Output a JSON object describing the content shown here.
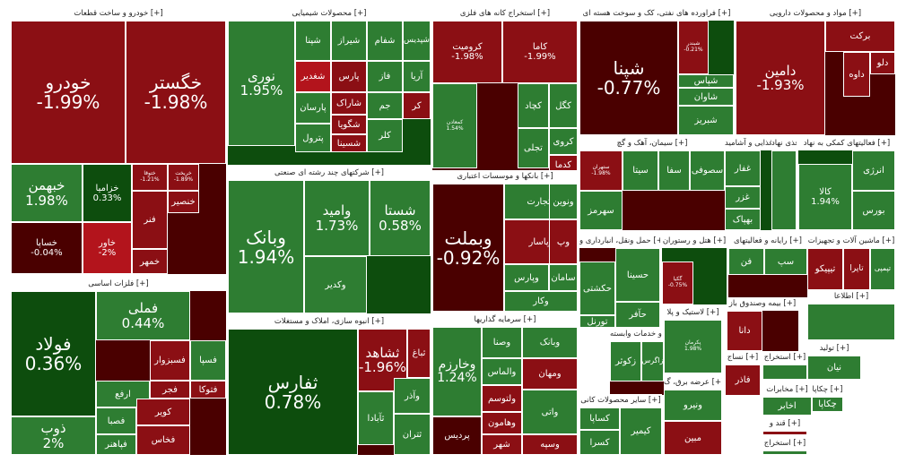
{
  "colors": {
    "gain_strong": "#1b8a1b",
    "gain": "#2e7d32",
    "gain_dark": "#0d4d0d",
    "loss": "#8b0f14",
    "loss_dark": "#4a0000",
    "loss_bright": "#b3141c"
  },
  "sectors": [
    {
      "id": "auto",
      "title": "خودرو و ساخت قطعات [+]",
      "tiles": [
        {
          "name": "خودرو",
          "pct": "-1.99%",
          "c": "loss",
          "big": 1
        },
        {
          "name": "خگستر",
          "pct": "-1.98%",
          "c": "loss",
          "big": 1
        },
        {
          "name": "خبهمن",
          "pct": "1.98%",
          "c": "gain",
          "big": 2
        },
        {
          "name": "خزامیا",
          "pct": "0.33%",
          "c": "gain_dark",
          "big": 3
        },
        {
          "name": "خساپا",
          "pct": "-0.04%",
          "c": "loss_dark",
          "big": 3
        },
        {
          "name": "خاور",
          "pct": "-2%",
          "c": "loss_bright",
          "big": 3
        },
        {
          "name": "ختوقا",
          "pct": "-1.21%",
          "c": "loss",
          "big": 4
        },
        {
          "name": "خریخت",
          "pct": "-1.89%",
          "c": "loss",
          "big": 4
        },
        {
          "name": "خنصیر",
          "pct": "",
          "c": "loss",
          "big": 3
        },
        {
          "name": "فنر",
          "pct": "",
          "c": "loss",
          "big": 3
        },
        {
          "name": "خمهر",
          "pct": "",
          "c": "loss",
          "big": 3
        }
      ]
    },
    {
      "id": "chem",
      "title": "محصولات شیمیایی [+]",
      "tiles": [
        {
          "name": "نوری",
          "pct": "1.95%",
          "c": "gain",
          "big": 2
        },
        {
          "name": "شغدیر",
          "pct": "",
          "c": "loss_bright",
          "big": 3
        },
        {
          "name": "شپنا",
          "pct": "",
          "c": "gain",
          "big": 3
        },
        {
          "name": "شیراز",
          "pct": "",
          "c": "gain",
          "big": 3
        },
        {
          "name": "شفام",
          "pct": "",
          "c": "gain",
          "big": 3
        },
        {
          "name": "شپدیس",
          "pct": "",
          "c": "gain",
          "big": 3
        },
        {
          "name": "پارس",
          "pct": "",
          "c": "loss",
          "big": 3
        },
        {
          "name": "شاراک",
          "pct": "",
          "c": "loss",
          "big": 3
        },
        {
          "name": "پارسان",
          "pct": "",
          "c": "gain",
          "big": 3
        },
        {
          "name": "شگویا",
          "pct": "",
          "c": "loss",
          "big": 3
        },
        {
          "name": "شسینا",
          "pct": "",
          "c": "loss",
          "big": 3
        },
        {
          "name": "پترول",
          "pct": "",
          "c": "gain",
          "big": 3
        },
        {
          "name": "فاز",
          "pct": "",
          "c": "gain",
          "big": 3
        },
        {
          "name": "آریا",
          "pct": "",
          "c": "gain",
          "big": 3
        },
        {
          "name": "جم",
          "pct": "",
          "c": "gain",
          "big": 3
        },
        {
          "name": "کلر",
          "pct": "",
          "c": "gain",
          "big": 3
        },
        {
          "name": "کر",
          "pct": "",
          "c": "loss",
          "big": 3
        }
      ]
    },
    {
      "id": "metal",
      "title": "استخراج کانه های فلزی [+]",
      "tiles": [
        {
          "name": "کرومیت",
          "pct": "-1.98%",
          "c": "loss",
          "big": 3
        },
        {
          "name": "کاما",
          "pct": "-1.99%",
          "c": "loss",
          "big": 3
        },
        {
          "name": "کگل",
          "pct": "",
          "c": "gain",
          "big": 3
        },
        {
          "name": "کچاد",
          "pct": "",
          "c": "gain",
          "big": 3
        },
        {
          "name": "کمعادن",
          "pct": "1.54%",
          "c": "gain",
          "big": 4
        },
        {
          "name": "کروی",
          "pct": "",
          "c": "gain",
          "big": 3
        },
        {
          "name": "کدما",
          "pct": "",
          "c": "loss",
          "big": 3
        },
        {
          "name": "تجلی",
          "pct": "",
          "c": "gain",
          "big": 3
        }
      ]
    },
    {
      "id": "refine",
      "title": "فراورده های نفتی، کک و سوخت هسته ای [+]",
      "tiles": [
        {
          "name": "شپنا",
          "pct": "-0.77%",
          "c": "loss_dark",
          "big": 1
        },
        {
          "name": "شبندر",
          "pct": "-0.21%",
          "c": "loss",
          "big": 4
        },
        {
          "name": "شبریز",
          "pct": "",
          "c": "gain",
          "big": 3
        },
        {
          "name": "شاوان",
          "pct": "",
          "c": "gain",
          "big": 3
        },
        {
          "name": "شپاس",
          "pct": "",
          "c": "gain",
          "big": 3
        }
      ]
    },
    {
      "id": "pharma",
      "title": "مواد و محصولات دارویی [+]",
      "tiles": [
        {
          "name": "دامین",
          "pct": "-1.93%",
          "c": "loss",
          "big": 2
        },
        {
          "name": "برکت",
          "pct": "",
          "c": "loss",
          "big": 3
        },
        {
          "name": "دلو",
          "pct": "",
          "c": "loss",
          "big": 3
        },
        {
          "name": "داوه",
          "pct": "",
          "c": "loss",
          "big": 3
        }
      ]
    },
    {
      "id": "diversified",
      "title": "شرکتهای چند رشته ای صنعتی [+]",
      "tiles": [
        {
          "name": "وبانک",
          "pct": "1.94%",
          "c": "gain",
          "big": 1
        },
        {
          "name": "وامید",
          "pct": "1.73%",
          "c": "gain",
          "big": 2
        },
        {
          "name": "شستا",
          "pct": "0.58%",
          "c": "gain",
          "big": 2
        },
        {
          "name": "وکدیر",
          "pct": "",
          "c": "gain",
          "big": 3
        }
      ]
    },
    {
      "id": "realestate",
      "title": "انبوه سازی، املاک و مستغلات [+]",
      "tiles": [
        {
          "name": "ثفارس",
          "pct": "0.78%",
          "c": "gain_dark",
          "big": 1
        },
        {
          "name": "ثشاهد",
          "pct": "-1.96%",
          "c": "loss",
          "big": 2
        },
        {
          "name": "ثباغ",
          "pct": "",
          "c": "loss",
          "big": 3
        },
        {
          "name": "ثآبادا",
          "pct": "",
          "c": "gain",
          "big": 3
        },
        {
          "name": "وآذر",
          "pct": "",
          "c": "gain",
          "big": 3
        },
        {
          "name": "ثتران",
          "pct": "",
          "c": "gain",
          "big": 3
        }
      ]
    },
    {
      "id": "banks",
      "title": "بانکها و موسسات اعتباری [+]",
      "tiles": [
        {
          "name": "وبملت",
          "pct": "-0.92%",
          "c": "loss_dark",
          "big": 1
        },
        {
          "name": "وپاسار",
          "pct": "",
          "c": "loss",
          "big": 3
        },
        {
          "name": "وپارس",
          "pct": "",
          "c": "gain",
          "big": 3
        },
        {
          "name": "سامان",
          "pct": "",
          "c": "gain",
          "big": 3
        },
        {
          "name": "وکار",
          "pct": "",
          "c": "gain",
          "big": 3
        },
        {
          "name": "وپ",
          "pct": "",
          "c": "loss",
          "big": 3
        },
        {
          "name": "وتجارت",
          "pct": "",
          "c": "gain",
          "big": 3
        },
        {
          "name": "ونوین",
          "pct": "",
          "c": "gain",
          "big": 3
        }
      ]
    },
    {
      "id": "basemetal",
      "title": "فلزات اساسی [+]",
      "tiles": [
        {
          "name": "فولاد",
          "pct": "0.36%",
          "c": "gain_dark",
          "big": 1
        },
        {
          "name": "فملی",
          "pct": "0.44%",
          "c": "gain",
          "big": 2
        },
        {
          "name": "ذوب",
          "pct": "2%",
          "c": "gain",
          "big": 2
        },
        {
          "name": "فسپا",
          "pct": "",
          "c": "gain",
          "big": 3
        },
        {
          "name": "فسبزوار",
          "pct": "",
          "c": "loss",
          "big": 3
        },
        {
          "name": "فتوکا",
          "pct": "",
          "c": "loss",
          "big": 3
        },
        {
          "name": "ارفع",
          "pct": "",
          "c": "gain",
          "big": 3
        },
        {
          "name": "فصبا",
          "pct": "",
          "c": "gain",
          "big": 3
        },
        {
          "name": "فجر",
          "pct": "",
          "c": "loss",
          "big": 3
        },
        {
          "name": "کویر",
          "pct": "",
          "c": "loss",
          "big": 3
        },
        {
          "name": "فپاهنر",
          "pct": "",
          "c": "gain",
          "big": 3
        },
        {
          "name": "فخاس",
          "pct": "",
          "c": "loss",
          "big": 3
        }
      ]
    },
    {
      "id": "invest",
      "title": "سرمایه گذاریها [+]",
      "tiles": [
        {
          "name": "وخارزم",
          "pct": "1.24%",
          "c": "gain",
          "big": 2
        },
        {
          "name": "وصنا",
          "pct": "",
          "c": "gain",
          "big": 3
        },
        {
          "name": "وبانک",
          "pct": "",
          "c": "gain",
          "big": 3
        },
        {
          "name": "والماس",
          "pct": "",
          "c": "gain",
          "big": 3
        },
        {
          "name": "ومهان",
          "pct": "",
          "c": "loss",
          "big": 3
        },
        {
          "name": "ولتوسم",
          "pct": "",
          "c": "loss",
          "big": 3
        },
        {
          "name": "وهامون",
          "pct": "",
          "c": "loss",
          "big": 3
        },
        {
          "name": "واتی",
          "pct": "",
          "c": "gain",
          "big": 3
        },
        {
          "name": "شهر",
          "pct": "",
          "c": "loss",
          "big": 3
        },
        {
          "name": "وسپه",
          "pct": "",
          "c": "loss",
          "big": 3
        },
        {
          "name": "پردیس",
          "pct": "",
          "c": "loss_dark",
          "big": 3
        }
      ]
    },
    {
      "id": "cement",
      "title": "سیمان، آهک و گچ [+]",
      "tiles": [
        {
          "name": "سهرمز",
          "pct": "",
          "c": "gain",
          "big": 3
        },
        {
          "name": "ستهران",
          "pct": "-1.98%",
          "c": "loss",
          "big": 4
        },
        {
          "name": "سیتا",
          "pct": "",
          "c": "gain",
          "big": 3
        },
        {
          "name": "سفا",
          "pct": "",
          "c": "gain",
          "big": 3
        },
        {
          "name": "سصوفی",
          "pct": "",
          "c": "gain",
          "big": 3
        }
      ]
    },
    {
      "id": "food",
      "title": "محصولات غذایی و آشامید [+]",
      "tiles": [
        {
          "name": "غفار",
          "pct": "",
          "c": "gain",
          "big": 3
        },
        {
          "name": "غزر",
          "pct": "",
          "c": "gain",
          "big": 3
        },
        {
          "name": "بهپاک",
          "pct": "",
          "c": "gain",
          "big": 3
        }
      ]
    },
    {
      "id": "inputs",
      "title": "محصولات کاغذی نهاد [+]",
      "tiles": [
        {
          "name": "",
          "pct": "",
          "c": "gain",
          "big": 3
        }
      ]
    },
    {
      "id": "support",
      "title": "فعالیتهای کمکی به نهاد [+]",
      "tiles": [
        {
          "name": "کالا",
          "pct": "1.94%",
          "c": "gain",
          "big": 3
        },
        {
          "name": "انرژی",
          "pct": "",
          "c": "gain",
          "big": 3
        },
        {
          "name": "بورس",
          "pct": "",
          "c": "gain",
          "big": 3
        }
      ]
    },
    {
      "id": "transport",
      "title": "حمل ونقل، انبارداری و [+]",
      "tiles": [
        {
          "name": "حسینا",
          "pct": "",
          "c": "gain",
          "big": 3
        },
        {
          "name": "حکشتی",
          "pct": "",
          "c": "gain",
          "big": 3
        },
        {
          "name": "حآفر",
          "pct": "",
          "c": "gain",
          "big": 3
        },
        {
          "name": "تورنل",
          "pct": "",
          "c": "gain",
          "big": 3
        }
      ]
    },
    {
      "id": "hotel",
      "title": "هتل و رستوران [+]",
      "tiles": [
        {
          "name": "گکیا",
          "pct": "-0.75%",
          "c": "loss",
          "big": 4
        }
      ]
    },
    {
      "id": "entertain",
      "title": "رایانه و فعالیتهای [+]",
      "tiles": [
        {
          "name": "فن",
          "pct": "",
          "c": "gain",
          "big": 3
        },
        {
          "name": "سپ",
          "pct": "",
          "c": "gain",
          "big": 3
        }
      ]
    },
    {
      "id": "machinery",
      "title": "ماشین آلات و تجهیزات [+]",
      "tiles": [
        {
          "name": "تیپیکو",
          "pct": "",
          "c": "loss",
          "big": 3
        },
        {
          "name": "تاپرا",
          "pct": "",
          "c": "loss",
          "big": 3
        },
        {
          "name": "تپمپی",
          "pct": "",
          "c": "gain",
          "big": 3
        }
      ]
    },
    {
      "id": "agri",
      "title": "زراعت و خدمات وابسته [+]",
      "tiles": [
        {
          "name": "زکوثر",
          "pct": "",
          "c": "gain",
          "big": 3
        },
        {
          "name": "زاگرس",
          "pct": "",
          "c": "gain",
          "big": 3
        }
      ]
    },
    {
      "id": "plastic",
      "title": "لاستیک و پلا [+]",
      "tiles": [
        {
          "name": "پکرمان",
          "pct": "1.98%",
          "c": "gain",
          "big": 4
        }
      ]
    },
    {
      "id": "insurance",
      "title": "بیمه وصندوق باز [+]",
      "tiles": [
        {
          "name": "دانا",
          "pct": "",
          "c": "loss",
          "big": 3
        }
      ]
    },
    {
      "id": "telecom",
      "title": "اطلاعا [+]",
      "tiles": [
        {
          "name": "",
          "pct": "",
          "c": "gain",
          "big": 3
        }
      ]
    },
    {
      "id": "other_products",
      "title": "سایر محصولات کانی [+]",
      "tiles": [
        {
          "name": "کساپا",
          "pct": "",
          "c": "gain",
          "big": 3
        },
        {
          "name": "کسرا",
          "pct": "",
          "c": "gain",
          "big": 3
        },
        {
          "name": "کیمیر",
          "pct": "",
          "c": "gain",
          "big": 3
        }
      ]
    },
    {
      "id": "utility",
      "title": "عرضه برق، گ [+]",
      "tiles": [
        {
          "name": "ونیرو",
          "pct": "",
          "c": "gain",
          "big": 3
        },
        {
          "name": "مبین",
          "pct": "",
          "c": "loss",
          "big": 3
        }
      ]
    },
    {
      "id": "textile",
      "title": "نساج [+]",
      "tiles": [
        {
          "name": "فاذر",
          "pct": "",
          "c": "loss",
          "big": 3
        }
      ]
    },
    {
      "id": "mining2",
      "title": "استخراج [+]",
      "tiles": [
        {
          "name": "",
          "pct": "",
          "c": "gain",
          "big": 3
        }
      ]
    },
    {
      "id": "info",
      "title": "تولید [+]",
      "tiles": [
        {
          "name": "نیان",
          "pct": "",
          "c": "gain",
          "big": 3
        }
      ]
    },
    {
      "id": "media",
      "title": "مخابرات [+]",
      "tiles": [
        {
          "name": "اخابر",
          "pct": "",
          "c": "gain",
          "big": 3
        }
      ]
    },
    {
      "id": "paper",
      "title": "قند و [+]",
      "tiles": [
        {
          "name": "",
          "pct": "",
          "c": "loss",
          "big": 3
        }
      ]
    },
    {
      "id": "oil2",
      "title": "استخراج [+]",
      "tiles": [
        {
          "name": "",
          "pct": "",
          "c": "gain",
          "big": 3
        }
      ]
    },
    {
      "id": "misc",
      "title": "چکاپا [+]",
      "tiles": [
        {
          "name": "چکاپا",
          "pct": "",
          "c": "gain",
          "big": 3
        }
      ]
    }
  ]
}
